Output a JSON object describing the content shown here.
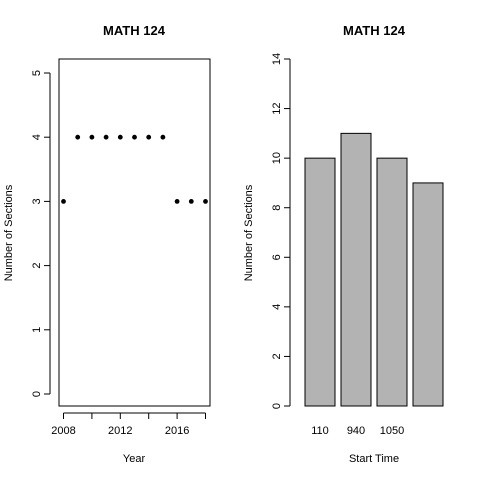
{
  "chart_data": [
    {
      "type": "scatter",
      "title": "MATH 124",
      "xlabel": "Year",
      "ylabel": "Number of Sections",
      "x": [
        2008,
        2009,
        2010,
        2011,
        2012,
        2013,
        2014,
        2015,
        2016,
        2017,
        2018
      ],
      "y": [
        3,
        4,
        4,
        4,
        4,
        4,
        4,
        4,
        3,
        3,
        3
      ],
      "xlim": [
        2008,
        2018
      ],
      "ylim": [
        0,
        5
      ],
      "xticks": [
        2008,
        2012,
        2016
      ],
      "yticks": [
        0,
        1,
        2,
        3,
        4,
        5
      ],
      "marker_color": "#000000",
      "frame": true
    },
    {
      "type": "bar",
      "title": "MATH 124",
      "xlabel": "Start Time",
      "ylabel": "Number of Sections",
      "categories": [
        "110",
        "940",
        "1050",
        ""
      ],
      "values": [
        10,
        11,
        10,
        9
      ],
      "ylim": [
        0,
        14
      ],
      "yticks": [
        0,
        2,
        4,
        6,
        8,
        10,
        12,
        14
      ],
      "bar_color": "#b3b3b3"
    }
  ]
}
